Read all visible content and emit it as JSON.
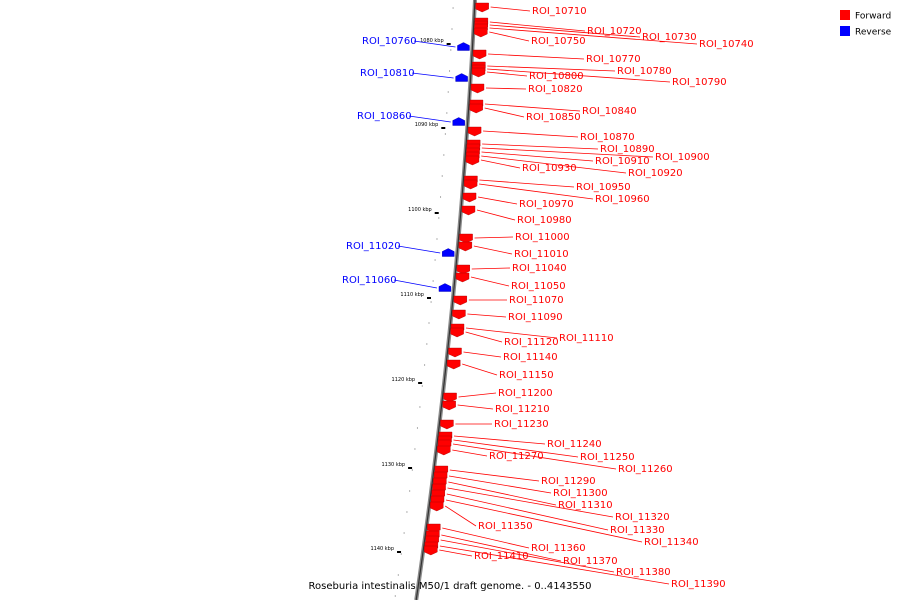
{
  "caption": "Roseburia intestinalis M50/1 draft genome. - 0..4143550",
  "legend": [
    {
      "label": "Forward",
      "color": "#ff0000"
    },
    {
      "label": "Reverse",
      "color": "#0000ff"
    }
  ],
  "ticks": [
    "1080 kbp",
    "1090 kbp",
    "1100 kbp",
    "1110 kbp",
    "1120 kbp",
    "1130 kbp",
    "1140 kbp"
  ],
  "features": [
    {
      "name": "ROI_10710",
      "strand": "forward"
    },
    {
      "name": "ROI_10720",
      "strand": "forward"
    },
    {
      "name": "ROI_10730",
      "strand": "forward"
    },
    {
      "name": "ROI_10740",
      "strand": "forward"
    },
    {
      "name": "ROI_10750",
      "strand": "forward"
    },
    {
      "name": "ROI_10760",
      "strand": "reverse"
    },
    {
      "name": "ROI_10770",
      "strand": "forward"
    },
    {
      "name": "ROI_10780",
      "strand": "forward"
    },
    {
      "name": "ROI_10790",
      "strand": "forward"
    },
    {
      "name": "ROI_10800",
      "strand": "forward"
    },
    {
      "name": "ROI_10810",
      "strand": "reverse"
    },
    {
      "name": "ROI_10820",
      "strand": "forward"
    },
    {
      "name": "ROI_10840",
      "strand": "forward"
    },
    {
      "name": "ROI_10850",
      "strand": "forward"
    },
    {
      "name": "ROI_10860",
      "strand": "reverse"
    },
    {
      "name": "ROI_10870",
      "strand": "forward"
    },
    {
      "name": "ROI_10890",
      "strand": "forward"
    },
    {
      "name": "ROI_10900",
      "strand": "forward"
    },
    {
      "name": "ROI_10910",
      "strand": "forward"
    },
    {
      "name": "ROI_10920",
      "strand": "forward"
    },
    {
      "name": "ROI_10930",
      "strand": "forward"
    },
    {
      "name": "ROI_10950",
      "strand": "forward"
    },
    {
      "name": "ROI_10960",
      "strand": "forward"
    },
    {
      "name": "ROI_10970",
      "strand": "forward"
    },
    {
      "name": "ROI_10980",
      "strand": "forward"
    },
    {
      "name": "ROI_11000",
      "strand": "forward"
    },
    {
      "name": "ROI_11010",
      "strand": "forward"
    },
    {
      "name": "ROI_11020",
      "strand": "reverse"
    },
    {
      "name": "ROI_11040",
      "strand": "forward"
    },
    {
      "name": "ROI_11050",
      "strand": "forward"
    },
    {
      "name": "ROI_11060",
      "strand": "reverse"
    },
    {
      "name": "ROI_11070",
      "strand": "forward"
    },
    {
      "name": "ROI_11090",
      "strand": "forward"
    },
    {
      "name": "ROI_11110",
      "strand": "forward"
    },
    {
      "name": "ROI_11120",
      "strand": "forward"
    },
    {
      "name": "ROI_11140",
      "strand": "forward"
    },
    {
      "name": "ROI_11150",
      "strand": "forward"
    },
    {
      "name": "ROI_11200",
      "strand": "forward"
    },
    {
      "name": "ROI_11210",
      "strand": "forward"
    },
    {
      "name": "ROI_11230",
      "strand": "forward"
    },
    {
      "name": "ROI_11240",
      "strand": "forward"
    },
    {
      "name": "ROI_11250",
      "strand": "forward"
    },
    {
      "name": "ROI_11260",
      "strand": "forward"
    },
    {
      "name": "ROI_11270",
      "strand": "forward"
    },
    {
      "name": "ROI_11290",
      "strand": "forward"
    },
    {
      "name": "ROI_11300",
      "strand": "forward"
    },
    {
      "name": "ROI_11310",
      "strand": "forward"
    },
    {
      "name": "ROI_11320",
      "strand": "forward"
    },
    {
      "name": "ROI_11330",
      "strand": "forward"
    },
    {
      "name": "ROI_11340",
      "strand": "forward"
    },
    {
      "name": "ROI_11350",
      "strand": "forward"
    },
    {
      "name": "ROI_11360",
      "strand": "forward"
    },
    {
      "name": "ROI_11370",
      "strand": "forward"
    },
    {
      "name": "ROI_11380",
      "strand": "forward"
    },
    {
      "name": "ROI_11390",
      "strand": "forward"
    },
    {
      "name": "ROI_11410",
      "strand": "forward"
    }
  ]
}
